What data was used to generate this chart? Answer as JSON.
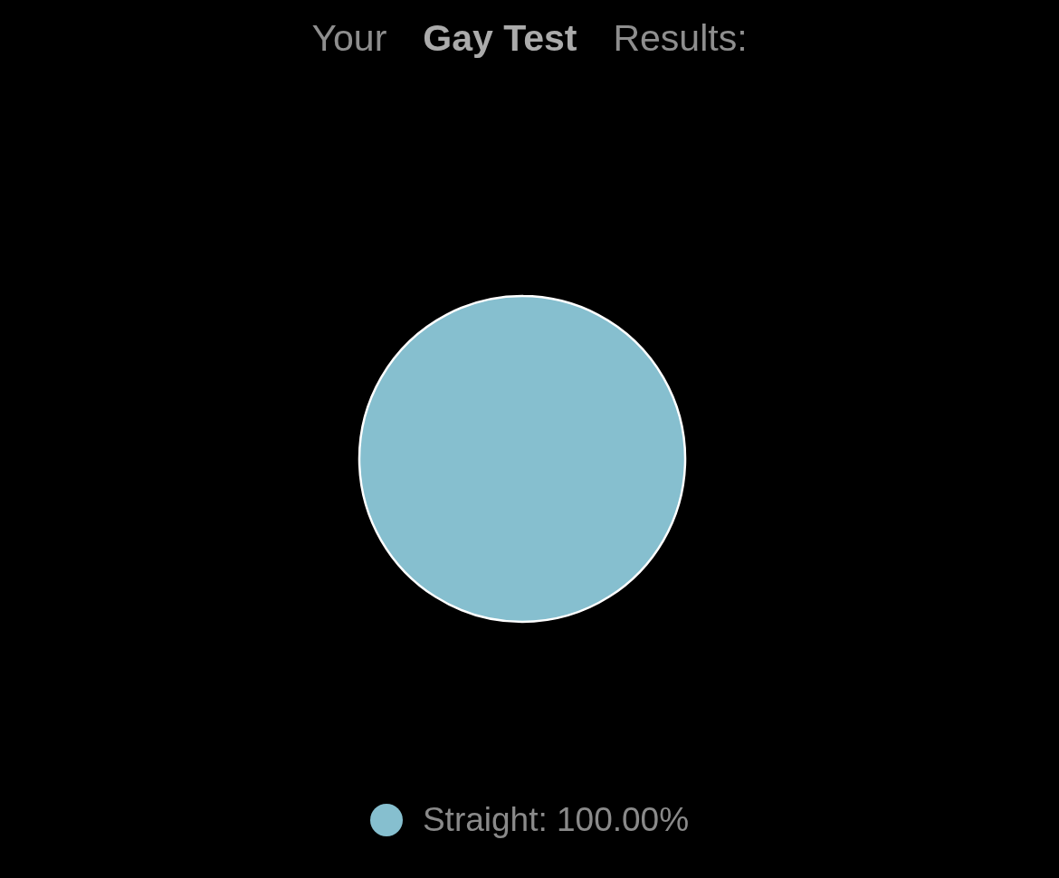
{
  "chart_data": {
    "type": "pie",
    "title": "Your Gay Test Results:",
    "categories": [
      "Straight"
    ],
    "values": [
      100
    ],
    "colors": [
      "#86bfcf"
    ],
    "value_labels": [
      "100.00%"
    ],
    "legend": "bottom"
  }
}
